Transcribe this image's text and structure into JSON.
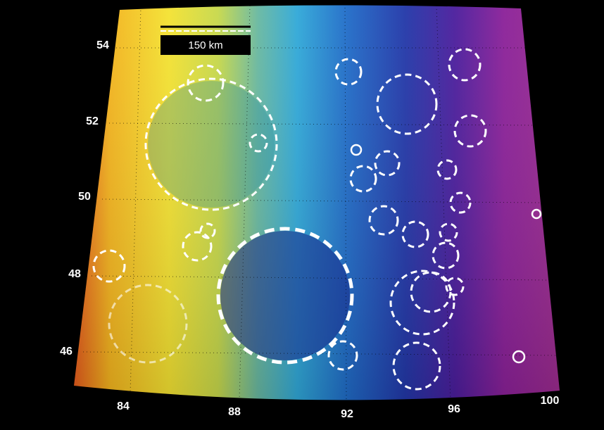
{
  "scale_bar": {
    "label": "150 km"
  },
  "latitude_labels": [
    "54",
    "52",
    "50",
    "48",
    "46"
  ],
  "longitude_labels": [
    "84",
    "88",
    "92",
    "96",
    "100"
  ]
}
